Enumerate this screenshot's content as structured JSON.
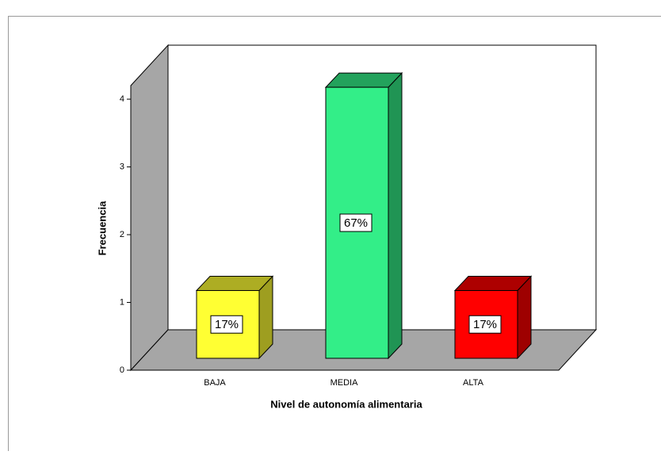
{
  "chart_data": {
    "type": "bar3d",
    "x_label": "Nivel de autonomía alimentaria",
    "y_label": "Frecuencia",
    "categories": [
      "BAJA",
      "MEDIA",
      "ALTA"
    ],
    "values": [
      1,
      4,
      1
    ],
    "percent_labels": [
      "17%",
      "67%",
      "17%"
    ],
    "colors": [
      "#ffff33",
      "#33ee88",
      "#ff0000"
    ],
    "ylim": [
      0,
      4.2
    ],
    "yticks": [
      0,
      1,
      2,
      3,
      4
    ]
  }
}
